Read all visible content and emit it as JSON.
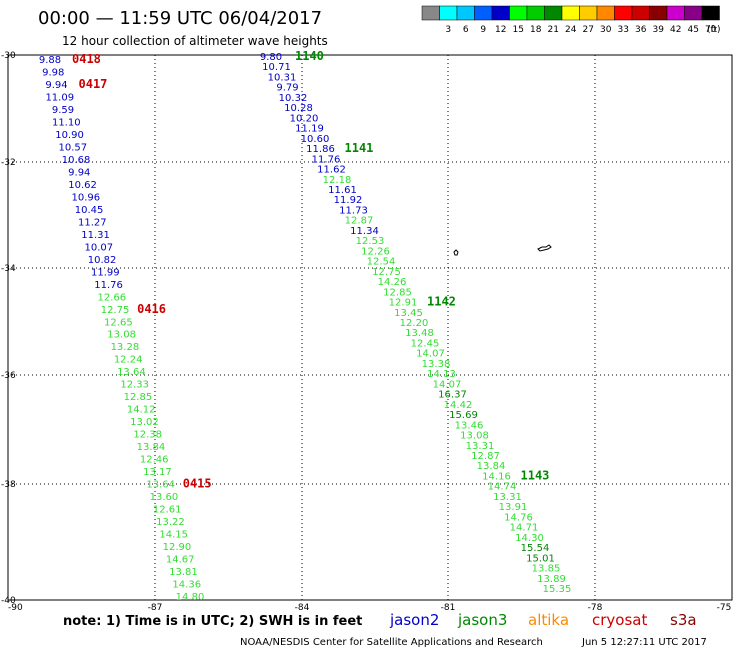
{
  "header": {
    "title": "00:00 — 11:59 UTC 06/04/2017",
    "subtitle": "12 hour collection of altimeter wave heights"
  },
  "legend": {
    "swatches": [
      {
        "label": "",
        "color": "#888888"
      },
      {
        "label": "3",
        "color": "#00ffff"
      },
      {
        "label": "6",
        "color": "#00c8ff"
      },
      {
        "label": "9",
        "color": "#0060ff"
      },
      {
        "label": "12",
        "color": "#0000c8"
      },
      {
        "label": "15",
        "color": "#00ff00"
      },
      {
        "label": "18",
        "color": "#00cc00"
      },
      {
        "label": "21",
        "color": "#008800"
      },
      {
        "label": "24",
        "color": "#ffff00"
      },
      {
        "label": "27",
        "color": "#ffcc00"
      },
      {
        "label": "30",
        "color": "#ff8800"
      },
      {
        "label": "33",
        "color": "#ff0000"
      },
      {
        "label": "36",
        "color": "#cc0000"
      },
      {
        "label": "39",
        "color": "#880000"
      },
      {
        "label": "42",
        "color": "#cc00cc"
      },
      {
        "label": "45",
        "color": "#880088"
      },
      {
        "label": "70",
        "color": "#000000"
      }
    ],
    "unit": "(ft)"
  },
  "axes": {
    "lon_labels": [
      "-90",
      "-87",
      "-84",
      "-81",
      "-78",
      "-75"
    ],
    "lat_labels": [
      "-30",
      "-32",
      "-34",
      "-36",
      "-38",
      "-40"
    ]
  },
  "colors": {
    "jason2": "#0000c8",
    "jason3": "#33dd33",
    "jason3_dark": "#008800",
    "altika": "#ff8800",
    "cryosat": "#cc0000",
    "s3a": "#880000"
  },
  "passes": [
    {
      "id": "0418",
      "sat": "cryosat",
      "anchor": "A_0"
    },
    {
      "id": "0417",
      "sat": "cryosat",
      "anchor": "A_2"
    },
    {
      "id": "0416",
      "sat": "cryosat",
      "anchor": "A_20"
    },
    {
      "id": "0415",
      "sat": "cryosat",
      "anchor": "A_34"
    },
    {
      "id": "1140",
      "sat": "jason3",
      "anchor": "B_0"
    },
    {
      "id": "1141",
      "sat": "jason3",
      "anchor": "B_9"
    },
    {
      "id": "1142",
      "sat": "jason3",
      "anchor": "B_24"
    },
    {
      "id": "1143",
      "sat": "jason3",
      "anchor": "B_41"
    }
  ],
  "track_a": [
    {
      "v": "9.88",
      "c": "jason2"
    },
    {
      "v": "9.98",
      "c": "jason2"
    },
    {
      "v": "9.94",
      "c": "jason2"
    },
    {
      "v": "11.09",
      "c": "jason2"
    },
    {
      "v": "9.59",
      "c": "jason2"
    },
    {
      "v": "11.10",
      "c": "jason2"
    },
    {
      "v": "10.90",
      "c": "jason2"
    },
    {
      "v": "10.57",
      "c": "jason2"
    },
    {
      "v": "10.68",
      "c": "jason2"
    },
    {
      "v": "9.94",
      "c": "jason2"
    },
    {
      "v": "10.62",
      "c": "jason2"
    },
    {
      "v": "10.96",
      "c": "jason2"
    },
    {
      "v": "10.45",
      "c": "jason2"
    },
    {
      "v": "11.27",
      "c": "jason2"
    },
    {
      "v": "11.31",
      "c": "jason2"
    },
    {
      "v": "10.07",
      "c": "jason2"
    },
    {
      "v": "10.82",
      "c": "jason2"
    },
    {
      "v": "11.99",
      "c": "jason2"
    },
    {
      "v": "11.76",
      "c": "jason2"
    },
    {
      "v": "12.66",
      "c": "jason3"
    },
    {
      "v": "12.75",
      "c": "jason3"
    },
    {
      "v": "12.65",
      "c": "jason3"
    },
    {
      "v": "13.08",
      "c": "jason3"
    },
    {
      "v": "13.28",
      "c": "jason3"
    },
    {
      "v": "12.24",
      "c": "jason3"
    },
    {
      "v": "13.64",
      "c": "jason3"
    },
    {
      "v": "12.33",
      "c": "jason3"
    },
    {
      "v": "12.85",
      "c": "jason3"
    },
    {
      "v": "14.12",
      "c": "jason3"
    },
    {
      "v": "13.02",
      "c": "jason3"
    },
    {
      "v": "12.38",
      "c": "jason3"
    },
    {
      "v": "13.84",
      "c": "jason3"
    },
    {
      "v": "12.46",
      "c": "jason3"
    },
    {
      "v": "13.17",
      "c": "jason3"
    },
    {
      "v": "13.64",
      "c": "jason3"
    },
    {
      "v": "13.60",
      "c": "jason3"
    },
    {
      "v": "12.61",
      "c": "jason3"
    },
    {
      "v": "13.22",
      "c": "jason3"
    },
    {
      "v": "14.15",
      "c": "jason3"
    },
    {
      "v": "12.90",
      "c": "jason3"
    },
    {
      "v": "14.67",
      "c": "jason3"
    },
    {
      "v": "13.81",
      "c": "jason3"
    },
    {
      "v": "14.36",
      "c": "jason3"
    },
    {
      "v": "14.80",
      "c": "jason3"
    }
  ],
  "track_b": [
    {
      "v": "9.80",
      "c": "jason2"
    },
    {
      "v": "10.71",
      "c": "jason2"
    },
    {
      "v": "10.31",
      "c": "jason2"
    },
    {
      "v": "9.79",
      "c": "jason2"
    },
    {
      "v": "10.32",
      "c": "jason2"
    },
    {
      "v": "10.28",
      "c": "jason2"
    },
    {
      "v": "10.20",
      "c": "jason2"
    },
    {
      "v": "11.19",
      "c": "jason2"
    },
    {
      "v": "10.60",
      "c": "jason2"
    },
    {
      "v": "11.86",
      "c": "jason2"
    },
    {
      "v": "11.76",
      "c": "jason2"
    },
    {
      "v": "11.62",
      "c": "jason2"
    },
    {
      "v": "12.18",
      "c": "jason3"
    },
    {
      "v": "11.61",
      "c": "jason2"
    },
    {
      "v": "11.92",
      "c": "jason2"
    },
    {
      "v": "11.73",
      "c": "jason2"
    },
    {
      "v": "12.87",
      "c": "jason3"
    },
    {
      "v": "11.34",
      "c": "jason2"
    },
    {
      "v": "12.53",
      "c": "jason3"
    },
    {
      "v": "12.26",
      "c": "jason3"
    },
    {
      "v": "12.54",
      "c": "jason3"
    },
    {
      "v": "12.75",
      "c": "jason3"
    },
    {
      "v": "14.26",
      "c": "jason3"
    },
    {
      "v": "12.85",
      "c": "jason3"
    },
    {
      "v": "12.91",
      "c": "jason3"
    },
    {
      "v": "13.45",
      "c": "jason3"
    },
    {
      "v": "12.20",
      "c": "jason3"
    },
    {
      "v": "13.48",
      "c": "jason3"
    },
    {
      "v": "12.45",
      "c": "jason3"
    },
    {
      "v": "14.07",
      "c": "jason3"
    },
    {
      "v": "13.38",
      "c": "jason3"
    },
    {
      "v": "14.13",
      "c": "jason3"
    },
    {
      "v": "14.07",
      "c": "jason3"
    },
    {
      "v": "16.37",
      "c": "jason3_dark"
    },
    {
      "v": "14.42",
      "c": "jason3"
    },
    {
      "v": "15.69",
      "c": "jason3_dark"
    },
    {
      "v": "13.46",
      "c": "jason3"
    },
    {
      "v": "13.08",
      "c": "jason3"
    },
    {
      "v": "13.31",
      "c": "jason3"
    },
    {
      "v": "12.87",
      "c": "jason3"
    },
    {
      "v": "13.84",
      "c": "jason3"
    },
    {
      "v": "14.16",
      "c": "jason3"
    },
    {
      "v": "14.74",
      "c": "jason3"
    },
    {
      "v": "13.31",
      "c": "jason3"
    },
    {
      "v": "13.91",
      "c": "jason3"
    },
    {
      "v": "14.76",
      "c": "jason3"
    },
    {
      "v": "14.71",
      "c": "jason3"
    },
    {
      "v": "14.30",
      "c": "jason3"
    },
    {
      "v": "15.54",
      "c": "jason3_dark"
    },
    {
      "v": "15.01",
      "c": "jason3_dark"
    },
    {
      "v": "13.85",
      "c": "jason3"
    },
    {
      "v": "13.89",
      "c": "jason3"
    },
    {
      "v": "15.35",
      "c": "jason3"
    }
  ],
  "footer": {
    "note": "note: 1) Time is in UTC; 2) SWH is in feet",
    "sat_labels": [
      {
        "text": "jason2",
        "c": "jason2"
      },
      {
        "text": "jason3",
        "c": "jason3_dark"
      },
      {
        "text": "altika",
        "c": "altika"
      },
      {
        "text": "cryosat",
        "c": "cryosat"
      },
      {
        "text": "s3a",
        "c": "s3a"
      }
    ],
    "credit": "NOAA/NESDIS Center for Satellite Applications and Research",
    "timestamp": "Jun  5 12:27:11 UTC 2017"
  }
}
